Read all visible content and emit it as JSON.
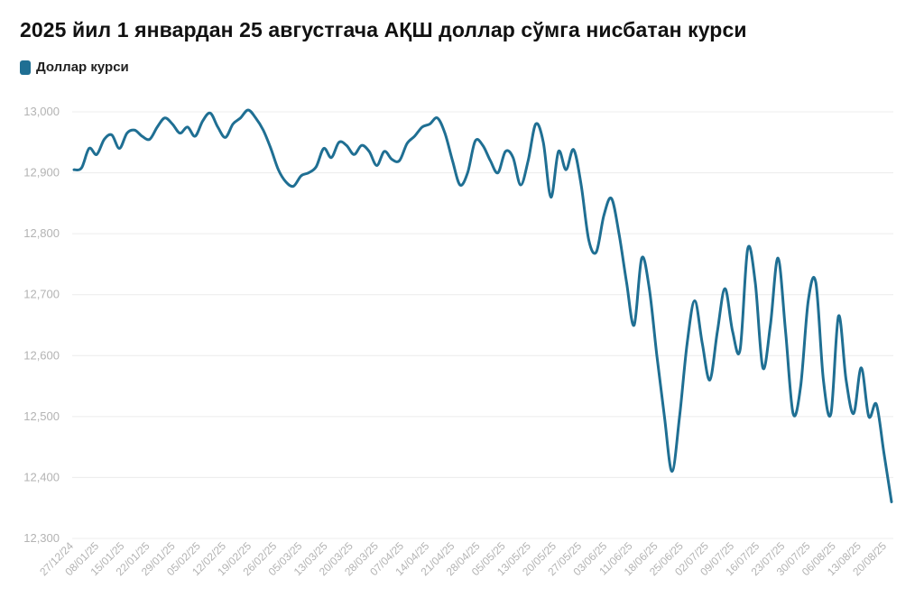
{
  "colors": {
    "line": "#1f6f93",
    "grid": "#ececec",
    "tick": "#b3b3b3"
  },
  "chart_data": {
    "type": "line",
    "title": "2025 йил 1 январдан 25 августгача АҚШ доллар сўмга нисбатан курси",
    "legend": "top-left",
    "grid": true,
    "ylim": [
      12300,
      13000
    ],
    "yticks": [
      "12,300",
      "12,400",
      "12,500",
      "12,600",
      "12,700",
      "12,800",
      "12,900",
      "13,000"
    ],
    "ytick_values": [
      12300,
      12400,
      12500,
      12600,
      12700,
      12800,
      12900,
      13000
    ],
    "xticks": [
      "27/12/24",
      "08/01/25",
      "15/01/25",
      "22/01/25",
      "29/01/25",
      "05/02/25",
      "12/02/25",
      "19/02/25",
      "26/02/25",
      "05/03/25",
      "13/03/25",
      "20/03/25",
      "28/03/25",
      "07/04/25",
      "14/04/25",
      "21/04/25",
      "28/04/25",
      "05/05/25",
      "13/05/25",
      "20/05/25",
      "27/05/25",
      "03/06/25",
      "11/06/25",
      "18/06/25",
      "25/06/25",
      "02/07/25",
      "09/07/25",
      "16/07/25",
      "23/07/25",
      "30/07/25",
      "06/08/25",
      "13/08/25",
      "20/08/25"
    ],
    "series": [
      {
        "name": "Доллар курси",
        "values": [
          12905,
          12908,
          12940,
          12930,
          12955,
          12962,
          12940,
          12965,
          12970,
          12960,
          12955,
          12975,
          12990,
          12980,
          12965,
          12975,
          12960,
          12985,
          12998,
          12975,
          12958,
          12980,
          12990,
          13003,
          12990,
          12970,
          12940,
          12905,
          12885,
          12878,
          12895,
          12900,
          12910,
          12940,
          12925,
          12950,
          12945,
          12930,
          12945,
          12935,
          12912,
          12935,
          12922,
          12920,
          12948,
          12960,
          12975,
          12980,
          12990,
          12965,
          12920,
          12880,
          12900,
          12952,
          12945,
          12920,
          12900,
          12935,
          12925,
          12880,
          12920,
          12980,
          12950,
          12860,
          12935,
          12905,
          12938,
          12880,
          12790,
          12770,
          12830,
          12858,
          12800,
          12720,
          12650,
          12760,
          12710,
          12600,
          12500,
          12410,
          12500,
          12620,
          12690,
          12620,
          12560,
          12640,
          12710,
          12640,
          12610,
          12775,
          12720,
          12580,
          12650,
          12760,
          12640,
          12505,
          12550,
          12690,
          12720,
          12560,
          12505,
          12665,
          12560,
          12505,
          12580,
          12500,
          12520,
          12440,
          12360
        ]
      }
    ]
  }
}
